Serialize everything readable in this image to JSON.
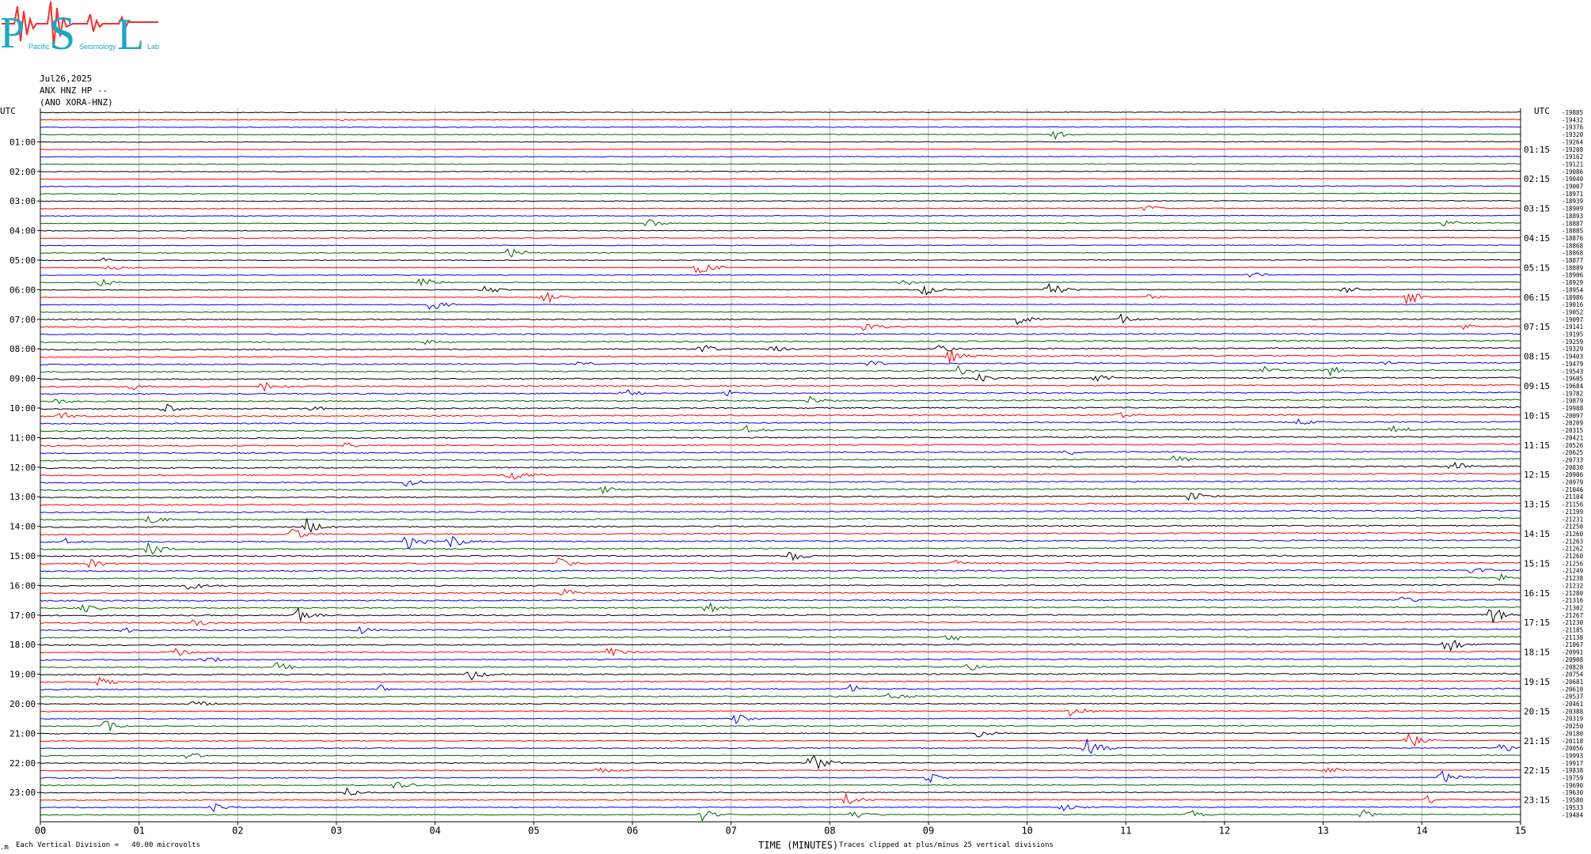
{
  "logo": {
    "big_letters": [
      "P",
      "S",
      "L"
    ],
    "small_words": [
      "Pacific",
      "Seismology",
      "Lab"
    ],
    "colors": {
      "letters": "#1aa9c4",
      "wave": "#ff2a2a"
    }
  },
  "header": {
    "date": "Jul26,2025",
    "station": "ANX HNZ HP --",
    "network": "(ANO XORA-HNZ)"
  },
  "left_axis": {
    "title": "UTC",
    "labels": [
      "01:00",
      "02:00",
      "03:00",
      "04:00",
      "05:00",
      "06:00",
      "07:00",
      "08:00",
      "09:00",
      "10:00",
      "11:00",
      "12:00",
      "13:00",
      "14:00",
      "15:00",
      "16:00",
      "17:00",
      "18:00",
      "19:00",
      "20:00",
      "21:00",
      "22:00",
      "23:00"
    ]
  },
  "right_axis": {
    "title": "UTC",
    "labels": [
      "01:15",
      "02:15",
      "03:15",
      "04:15",
      "05:15",
      "06:15",
      "07:15",
      "08:15",
      "09:15",
      "10:15",
      "11:15",
      "12:15",
      "13:15",
      "14:15",
      "15:15",
      "16:15",
      "17:15",
      "18:15",
      "19:15",
      "20:15",
      "21:15",
      "22:15",
      "23:15"
    ]
  },
  "footer": {
    "scale_note": "Each Vertical Division =   40.00 microvolts",
    "axis_title": "TIME (MINUTES)",
    "clip_note": "Traces clipped at plus/minus 25 vertical divisions",
    "corner_mark": ".m"
  },
  "chart_data": {
    "type": "line",
    "title": "",
    "xlabel": "TIME (MINUTES)",
    "ylabel": "UTC",
    "xlim": [
      0,
      15
    ],
    "x_ticks": [
      "00",
      "01",
      "02",
      "03",
      "04",
      "05",
      "06",
      "07",
      "08",
      "09",
      "10",
      "11",
      "12",
      "13",
      "14",
      "15"
    ],
    "grid": "vertical-minutes",
    "trace_count": 96,
    "trace_interval_minutes": 15,
    "trace_colors": [
      "#000000",
      "#ff0000",
      "#0000ff",
      "#006400"
    ],
    "trace_offsets": [
      "-19885",
      "-19432",
      "-19376",
      "-19320",
      "-19264",
      "-19208",
      "-19162",
      "-19121",
      "-19086",
      "-19040",
      "-19007",
      "-18971",
      "-18939",
      "-18909",
      "-18893",
      "-18887",
      "-18885",
      "-18876",
      "-18868",
      "-18868",
      "-18877",
      "-18889",
      "-18906",
      "-18929",
      "-18954",
      "-18986",
      "-19016",
      "-19052",
      "-19097",
      "-19141",
      "-19195",
      "-19259",
      "-19329",
      "-19403",
      "-19479",
      "-19543",
      "-19605",
      "-19684",
      "-19782",
      "-19879",
      "-19988",
      "-20097",
      "-20209",
      "-20315",
      "-20421",
      "-20526",
      "-20625",
      "-20733",
      "-20830",
      "-20906",
      "-20979",
      "-21046",
      "-21104",
      "-21156",
      "-21199",
      "-21231",
      "-21250",
      "-21260",
      "-21263",
      "-21262",
      "-21260",
      "-21256",
      "-21249",
      "-21238",
      "-21232",
      "-21280",
      "-21316",
      "-21302",
      "-21267",
      "-21230",
      "-21185",
      "-21138",
      "-21067",
      "-20991",
      "-20908",
      "-20828",
      "-20754",
      "-20681",
      "-20610",
      "-20537",
      "-20461",
      "-20388",
      "-20319",
      "-20250",
      "-20180",
      "-20118",
      "-20056",
      "-19993",
      "-19917",
      "-19838",
      "-19759",
      "-19690",
      "-19630",
      "-19580",
      "-19533",
      "-19484"
    ],
    "events": [
      {
        "trace": 1,
        "minute": 3.05,
        "amp": 0.9
      },
      {
        "trace": 3,
        "minute": 10.25,
        "amp": 3.5
      },
      {
        "trace": 13,
        "minute": 11.2,
        "amp": 2.8
      },
      {
        "trace": 15,
        "minute": 6.15,
        "amp": 3.0
      },
      {
        "trace": 15,
        "minute": 14.2,
        "amp": 2.5
      },
      {
        "trace": 19,
        "minute": 4.75,
        "amp": 3.2
      },
      {
        "trace": 20,
        "minute": 0.6,
        "amp": 2.2
      },
      {
        "trace": 21,
        "minute": 0.7,
        "amp": 2.0
      },
      {
        "trace": 21,
        "minute": 6.65,
        "amp": 6.0
      },
      {
        "trace": 22,
        "minute": 12.25,
        "amp": 2.5
      },
      {
        "trace": 23,
        "minute": 0.6,
        "amp": 3.0
      },
      {
        "trace": 23,
        "minute": 3.85,
        "amp": 3.5
      },
      {
        "trace": 23,
        "minute": 8.7,
        "amp": 3.0
      },
      {
        "trace": 24,
        "minute": 4.5,
        "amp": 3.0
      },
      {
        "trace": 24,
        "minute": 8.95,
        "amp": 4.0
      },
      {
        "trace": 24,
        "minute": 10.2,
        "amp": 6.0
      },
      {
        "trace": 24,
        "minute": 13.2,
        "amp": 4.0
      },
      {
        "trace": 25,
        "minute": 5.1,
        "amp": 6.0
      },
      {
        "trace": 25,
        "minute": 11.2,
        "amp": 2.5
      },
      {
        "trace": 25,
        "minute": 13.85,
        "amp": 6.0
      },
      {
        "trace": 26,
        "minute": 3.95,
        "amp": 4.0
      },
      {
        "trace": 28,
        "minute": 9.9,
        "amp": 4.0
      },
      {
        "trace": 28,
        "minute": 10.95,
        "amp": 3.0
      },
      {
        "trace": 29,
        "minute": 8.35,
        "amp": 3.5
      },
      {
        "trace": 29,
        "minute": 14.4,
        "amp": 2.5
      },
      {
        "trace": 31,
        "minute": 3.9,
        "amp": 2.5
      },
      {
        "trace": 32,
        "minute": 6.7,
        "amp": 3.0
      },
      {
        "trace": 32,
        "minute": 7.4,
        "amp": 3.0
      },
      {
        "trace": 32,
        "minute": 9.1,
        "amp": 3.0
      },
      {
        "trace": 33,
        "minute": 9.2,
        "amp": 4.5
      },
      {
        "trace": 34,
        "minute": 5.45,
        "amp": 2.0
      },
      {
        "trace": 34,
        "minute": 8.4,
        "amp": 2.5
      },
      {
        "trace": 34,
        "minute": 13.6,
        "amp": 2.0
      },
      {
        "trace": 35,
        "minute": 9.3,
        "amp": 3.5
      },
      {
        "trace": 35,
        "minute": 12.4,
        "amp": 3.0
      },
      {
        "trace": 35,
        "minute": 13.05,
        "amp": 3.0
      },
      {
        "trace": 36,
        "minute": 9.5,
        "amp": 3.0
      },
      {
        "trace": 36,
        "minute": 10.7,
        "amp": 3.0
      },
      {
        "trace": 37,
        "minute": 0.9,
        "amp": 3.0
      },
      {
        "trace": 37,
        "minute": 2.25,
        "amp": 3.5
      },
      {
        "trace": 38,
        "minute": 5.9,
        "amp": 3.0
      },
      {
        "trace": 38,
        "minute": 6.95,
        "amp": 2.5
      },
      {
        "trace": 39,
        "minute": 7.8,
        "amp": 3.0
      },
      {
        "trace": 39,
        "minute": 0.15,
        "amp": 2.5
      },
      {
        "trace": 40,
        "minute": 1.25,
        "amp": 4.0
      },
      {
        "trace": 40,
        "minute": 2.75,
        "amp": 2.0
      },
      {
        "trace": 41,
        "minute": 0.2,
        "amp": 3.0
      },
      {
        "trace": 41,
        "minute": 10.9,
        "amp": 3.0
      },
      {
        "trace": 42,
        "minute": 12.75,
        "amp": 3.0
      },
      {
        "trace": 43,
        "minute": 7.15,
        "amp": 3.0
      },
      {
        "trace": 43,
        "minute": 13.7,
        "amp": 4.0
      },
      {
        "trace": 45,
        "minute": 3.1,
        "amp": 2.0
      },
      {
        "trace": 46,
        "minute": 10.4,
        "amp": 2.5
      },
      {
        "trace": 47,
        "minute": 11.5,
        "amp": 2.5
      },
      {
        "trace": 48,
        "minute": 14.3,
        "amp": 4.0
      },
      {
        "trace": 49,
        "minute": 4.75,
        "amp": 5.0
      },
      {
        "trace": 50,
        "minute": 3.7,
        "amp": 3.0
      },
      {
        "trace": 51,
        "minute": 5.7,
        "amp": 2.5
      },
      {
        "trace": 52,
        "minute": 11.65,
        "amp": 3.5
      },
      {
        "trace": 55,
        "minute": 1.1,
        "amp": 3.5
      },
      {
        "trace": 56,
        "minute": 2.7,
        "amp": 5.0
      },
      {
        "trace": 57,
        "minute": 2.55,
        "amp": 4.0
      },
      {
        "trace": 58,
        "minute": 3.7,
        "amp": 5.0
      },
      {
        "trace": 58,
        "minute": 4.15,
        "amp": 5.0
      },
      {
        "trace": 58,
        "minute": 0.25,
        "amp": 2.0
      },
      {
        "trace": 59,
        "minute": 1.1,
        "amp": 5.0
      },
      {
        "trace": 60,
        "minute": 7.6,
        "amp": 4.0
      },
      {
        "trace": 61,
        "minute": 0.5,
        "amp": 3.0
      },
      {
        "trace": 61,
        "minute": 5.25,
        "amp": 3.0
      },
      {
        "trace": 61,
        "minute": 9.25,
        "amp": 2.0
      },
      {
        "trace": 62,
        "minute": 14.5,
        "amp": 2.5
      },
      {
        "trace": 63,
        "minute": 14.8,
        "amp": 2.5
      },
      {
        "trace": 64,
        "minute": 1.5,
        "amp": 3.0
      },
      {
        "trace": 65,
        "minute": 5.3,
        "amp": 3.0
      },
      {
        "trace": 66,
        "minute": 13.8,
        "amp": 2.5
      },
      {
        "trace": 67,
        "minute": 0.4,
        "amp": 3.5
      },
      {
        "trace": 67,
        "minute": 6.75,
        "amp": 4.0
      },
      {
        "trace": 68,
        "minute": 2.6,
        "amp": 5.0
      },
      {
        "trace": 68,
        "minute": 14.7,
        "amp": 6.0
      },
      {
        "trace": 69,
        "minute": 1.55,
        "amp": 2.5
      },
      {
        "trace": 70,
        "minute": 3.2,
        "amp": 3.5
      },
      {
        "trace": 70,
        "minute": 0.85,
        "amp": 2.0
      },
      {
        "trace": 71,
        "minute": 9.2,
        "amp": 3.5
      },
      {
        "trace": 72,
        "minute": 14.25,
        "amp": 6.0
      },
      {
        "trace": 73,
        "minute": 5.75,
        "amp": 4.0
      },
      {
        "trace": 73,
        "minute": 1.35,
        "amp": 3.0
      },
      {
        "trace": 74,
        "minute": 1.65,
        "amp": 3.0
      },
      {
        "trace": 75,
        "minute": 2.4,
        "amp": 3.0
      },
      {
        "trace": 75,
        "minute": 9.4,
        "amp": 2.5
      },
      {
        "trace": 76,
        "minute": 4.35,
        "amp": 4.0
      },
      {
        "trace": 77,
        "minute": 0.6,
        "amp": 3.5
      },
      {
        "trace": 78,
        "minute": 3.45,
        "amp": 3.0
      },
      {
        "trace": 78,
        "minute": 8.2,
        "amp": 2.5
      },
      {
        "trace": 79,
        "minute": 8.6,
        "amp": 3.0
      },
      {
        "trace": 80,
        "minute": 1.55,
        "amp": 3.0
      },
      {
        "trace": 81,
        "minute": 10.45,
        "amp": 4.0
      },
      {
        "trace": 82,
        "minute": 7.05,
        "amp": 3.0
      },
      {
        "trace": 83,
        "minute": 0.65,
        "amp": 4.0
      },
      {
        "trace": 84,
        "minute": 9.5,
        "amp": 4.0
      },
      {
        "trace": 85,
        "minute": 13.85,
        "amp": 6.0
      },
      {
        "trace": 86,
        "minute": 10.6,
        "amp": 7.0
      },
      {
        "trace": 86,
        "minute": 14.8,
        "amp": 3.0
      },
      {
        "trace": 87,
        "minute": 1.5,
        "amp": 2.5
      },
      {
        "trace": 88,
        "minute": 7.8,
        "amp": 7.0
      },
      {
        "trace": 89,
        "minute": 5.65,
        "amp": 2.5
      },
      {
        "trace": 89,
        "minute": 13.0,
        "amp": 3.0
      },
      {
        "trace": 90,
        "minute": 9.0,
        "amp": 3.0
      },
      {
        "trace": 90,
        "minute": 14.2,
        "amp": 4.0
      },
      {
        "trace": 91,
        "minute": 3.6,
        "amp": 3.0
      },
      {
        "trace": 92,
        "minute": 3.1,
        "amp": 3.0
      },
      {
        "trace": 93,
        "minute": 8.15,
        "amp": 4.0
      },
      {
        "trace": 93,
        "minute": 14.05,
        "amp": 3.0
      },
      {
        "trace": 94,
        "minute": 1.75,
        "amp": 3.0
      },
      {
        "trace": 94,
        "minute": 10.35,
        "amp": 3.0
      },
      {
        "trace": 95,
        "minute": 6.7,
        "amp": 4.0
      },
      {
        "trace": 95,
        "minute": 8.2,
        "amp": 4.5
      },
      {
        "trace": 95,
        "minute": 11.65,
        "amp": 3.0
      },
      {
        "trace": 95,
        "minute": 13.4,
        "amp": 3.0
      }
    ]
  }
}
